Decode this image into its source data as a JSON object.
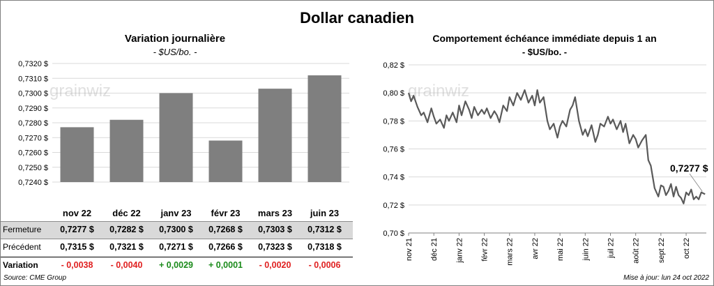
{
  "page_title": "Dollar canadien",
  "left_chart": {
    "title": "Variation  journalière",
    "unit": "- $US/bo. -",
    "bar_color": "#7f7f7f"
  },
  "right_chart": {
    "title": "Comportement échéance immédiate depuis 1 an",
    "unit": "- $US/bo. -",
    "last_value_label": "0,7277 $",
    "watermark": "grainwiz",
    "line_color": "#595959"
  },
  "table": {
    "rows": [
      {
        "label": "Fermeture",
        "values": [
          "0,7277  $",
          "0,7282  $",
          "0,7300  $",
          "0,7268  $",
          "0,7303  $",
          "0,7312  $"
        ]
      },
      {
        "label": "Précédent",
        "values": [
          "0,7315  $",
          "0,7321  $",
          "0,7271  $",
          "0,7266  $",
          "0,7323  $",
          "0,7318  $"
        ]
      },
      {
        "label": "Variation",
        "values": [
          "- 0,0038",
          "- 0,0040",
          "+ 0,0029",
          "+ 0,0001",
          "- 0,0020",
          "- 0,0006"
        ]
      }
    ]
  },
  "footer": {
    "source": "Source: CME Group",
    "updated": "Mise à jour: lun 24 oct 2022"
  },
  "chart_data": [
    {
      "type": "bar",
      "title": "Variation  journalière",
      "ylabel": "- $US/bo. -",
      "categories": [
        "nov 22",
        "déc 22",
        "janv 23",
        "févr 23",
        "mars 23",
        "juin 23"
      ],
      "values": [
        0.7277,
        0.7282,
        0.73,
        0.7268,
        0.7303,
        0.7312
      ],
      "ylim": [
        0.724,
        0.732
      ],
      "yticks": [
        0.724,
        0.725,
        0.726,
        0.727,
        0.728,
        0.729,
        0.73,
        0.731,
        0.732
      ],
      "ytick_labels": [
        "0,7240 $",
        "0,7250 $",
        "0,7260 $",
        "0,7270 $",
        "0,7280 $",
        "0,7290 $",
        "0,7300 $",
        "0,7310 $",
        "0,7320 $"
      ],
      "grid": true
    },
    {
      "type": "line",
      "title": "Comportement échéance immédiate depuis 1 an",
      "ylabel": "- $US/bo. -",
      "ylim": [
        0.7,
        0.82
      ],
      "yticks": [
        0.7,
        0.72,
        0.74,
        0.76,
        0.78,
        0.8,
        0.82
      ],
      "ytick_labels": [
        "0,70 $",
        "0,72 $",
        "0,74 $",
        "0,76 $",
        "0,78 $",
        "0,80 $",
        "0,82 $"
      ],
      "xticks": [
        0,
        1,
        2,
        3,
        4,
        5,
        6,
        7,
        8,
        9,
        10,
        11
      ],
      "xtick_labels": [
        "nov 21",
        "déc 21",
        "janv 22",
        "févr 22",
        "mars 22",
        "avr 22",
        "mai 22",
        "juin 22",
        "juil 22",
        "août 22",
        "sept 22",
        "oct 22"
      ],
      "xlim": [
        0,
        11.8
      ],
      "annotation": "0,7277 $",
      "series": [
        {
          "name": "Dollar canadien",
          "x": [
            0,
            0.1,
            0.2,
            0.35,
            0.5,
            0.6,
            0.75,
            0.9,
            1.0,
            1.1,
            1.25,
            1.4,
            1.5,
            1.6,
            1.75,
            1.9,
            2.0,
            2.1,
            2.25,
            2.4,
            2.5,
            2.6,
            2.75,
            2.9,
            3.0,
            3.1,
            3.25,
            3.4,
            3.5,
            3.6,
            3.75,
            3.9,
            4.0,
            4.15,
            4.3,
            4.45,
            4.6,
            4.75,
            4.9,
            5.0,
            5.1,
            5.2,
            5.35,
            5.5,
            5.6,
            5.75,
            5.9,
            6.0,
            6.1,
            6.25,
            6.4,
            6.5,
            6.6,
            6.75,
            6.9,
            7.0,
            7.1,
            7.25,
            7.4,
            7.5,
            7.6,
            7.75,
            7.9,
            8.0,
            8.1,
            8.25,
            8.4,
            8.5,
            8.6,
            8.75,
            8.9,
            9.0,
            9.1,
            9.25,
            9.4,
            9.5,
            9.6,
            9.75,
            9.9,
            10.0,
            10.1,
            10.2,
            10.3,
            10.4,
            10.5,
            10.6,
            10.7,
            10.8,
            10.9,
            11.0,
            11.1,
            11.2,
            11.3,
            11.4,
            11.5,
            11.6,
            11.75
          ],
          "values": [
            0.8,
            0.794,
            0.798,
            0.79,
            0.784,
            0.786,
            0.779,
            0.789,
            0.783,
            0.778,
            0.781,
            0.775,
            0.784,
            0.78,
            0.786,
            0.779,
            0.791,
            0.784,
            0.794,
            0.788,
            0.782,
            0.79,
            0.784,
            0.788,
            0.785,
            0.789,
            0.782,
            0.787,
            0.784,
            0.779,
            0.791,
            0.787,
            0.797,
            0.791,
            0.8,
            0.795,
            0.802,
            0.793,
            0.798,
            0.791,
            0.802,
            0.793,
            0.797,
            0.78,
            0.774,
            0.778,
            0.768,
            0.776,
            0.78,
            0.776,
            0.788,
            0.791,
            0.797,
            0.78,
            0.77,
            0.774,
            0.769,
            0.777,
            0.765,
            0.77,
            0.778,
            0.776,
            0.783,
            0.778,
            0.781,
            0.774,
            0.78,
            0.772,
            0.778,
            0.764,
            0.77,
            0.767,
            0.761,
            0.766,
            0.77,
            0.752,
            0.748,
            0.732,
            0.726,
            0.734,
            0.733,
            0.727,
            0.73,
            0.735,
            0.726,
            0.733,
            0.727,
            0.725,
            0.721,
            0.729,
            0.727,
            0.731,
            0.724,
            0.726,
            0.724,
            0.729,
            0.7277
          ]
        }
      ]
    }
  ]
}
